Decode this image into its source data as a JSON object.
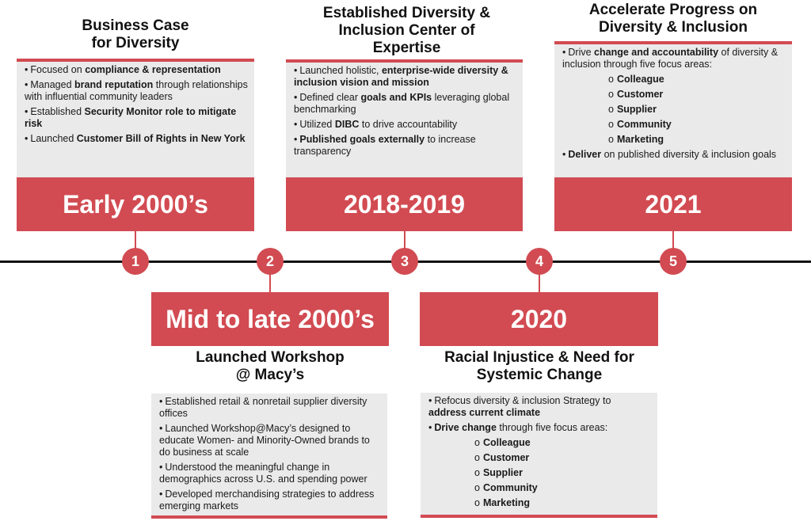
{
  "milestones": [
    {
      "number": "1",
      "period": "Early 2000’s",
      "heading": [
        "Business Case",
        "for Diversity"
      ],
      "bullets": [
        [
          {
            "t": "Focused on "
          },
          {
            "t": "compliance & representation",
            "b": true
          }
        ],
        [
          {
            "t": "Managed "
          },
          {
            "t": "brand reputation",
            "b": true
          },
          {
            "t": " through relationships with influential community leaders"
          }
        ],
        [
          {
            "t": "Established "
          },
          {
            "t": "Security Monitor role to mitigate risk",
            "b": true
          }
        ],
        [
          {
            "t": "Launched "
          },
          {
            "t": "Customer Bill of Rights in New York",
            "b": true
          }
        ]
      ],
      "subitems": [],
      "after": []
    },
    {
      "number": "2",
      "period": "Mid to late 2000’s",
      "heading": [
        "Launched Workshop",
        "@ Macy’s"
      ],
      "bullets": [
        [
          {
            "t": "Established retail & nonretail supplier diversity offices"
          }
        ],
        [
          {
            "t": "Launched Workshop@Macy’s designed to educate Women- and Minority-Owned brands to do business at scale"
          }
        ],
        [
          {
            "t": "Understood the meaningful change in demographics across U.S. and spending power"
          }
        ],
        [
          {
            "t": "Developed merchandising strategies to address emerging markets"
          }
        ]
      ],
      "subitems": [],
      "after": []
    },
    {
      "number": "3",
      "period": "2018-2019",
      "heading": [
        "Established Diversity &",
        "Inclusion Center of",
        "Expertise"
      ],
      "bullets": [
        [
          {
            "t": "Launched holistic, "
          },
          {
            "t": "enterprise-wide diversity & inclusion vision and mission",
            "b": true
          }
        ],
        [
          {
            "t": "Defined clear "
          },
          {
            "t": "goals and KPIs",
            "b": true
          },
          {
            "t": " leveraging global benchmarking"
          }
        ],
        [
          {
            "t": "Utilized "
          },
          {
            "t": "DIBC",
            "b": true
          },
          {
            "t": " to drive accountability"
          }
        ],
        [
          {
            "t": "Published goals externally",
            "b": true
          },
          {
            "t": " to increase transparency"
          }
        ]
      ],
      "subitems": [],
      "after": []
    },
    {
      "number": "4",
      "period": "2020",
      "heading": [
        "Racial Injustice & Need for",
        "Systemic Change"
      ],
      "bullets": [
        [
          {
            "t": "Refocus diversity & inclusion Strategy to "
          },
          {
            "t": "address current climate",
            "b": true
          }
        ],
        [
          {
            "t": "Drive change",
            "b": true
          },
          {
            "t": " through five focus areas:"
          }
        ]
      ],
      "subitems": [
        "Colleague",
        "Customer",
        "Supplier",
        "Community",
        "Marketing"
      ],
      "after": []
    },
    {
      "number": "5",
      "period": "2021",
      "heading": [
        "Accelerate Progress on",
        "Diversity & Inclusion"
      ],
      "bullets": [
        [
          {
            "t": "Drive "
          },
          {
            "t": "change and accountability",
            "b": true
          },
          {
            "t": " of diversity & inclusion through five focus areas:"
          }
        ]
      ],
      "subitems": [
        "Colleague",
        "Customer",
        "Supplier",
        "Community",
        "Marketing"
      ],
      "after": [
        [
          {
            "t": "Deliver",
            "b": true
          },
          {
            "t": " on published diversity & inclusion goals"
          }
        ]
      ]
    }
  ],
  "glyphs": {
    "bullet": "•",
    "sub_bullet": "o"
  },
  "colors": {
    "accent": "#d24b52",
    "box": "#eaeaea",
    "axis": "#111111"
  }
}
